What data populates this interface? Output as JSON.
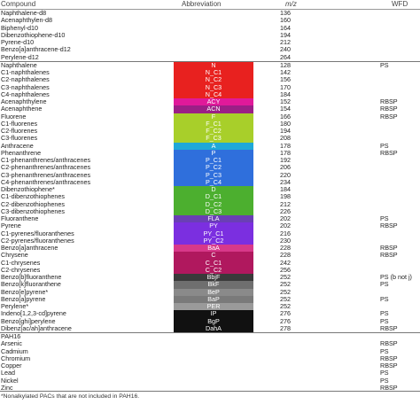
{
  "header": {
    "compound": "Compound",
    "abbreviation": "Abbreviation",
    "mz": "m/z",
    "wfd": "WFD"
  },
  "rows": [
    {
      "name": "Naphthalene-d8",
      "abbr": "",
      "mz": "136",
      "wfd": "",
      "color": ""
    },
    {
      "name": "Acenaphthylen-d8",
      "abbr": "",
      "mz": "160",
      "wfd": "",
      "color": ""
    },
    {
      "name": "Biphenyl-d10",
      "abbr": "",
      "mz": "164",
      "wfd": "",
      "color": ""
    },
    {
      "name": "Dibenzothiophene-d10",
      "abbr": "",
      "mz": "194",
      "wfd": "",
      "color": ""
    },
    {
      "name": "Pyrene-d10",
      "abbr": "",
      "mz": "212",
      "wfd": "",
      "color": ""
    },
    {
      "name": "Benzo[a]anthracene-d12",
      "abbr": "",
      "mz": "240",
      "wfd": "",
      "color": ""
    },
    {
      "name": "Perylene-d12",
      "abbr": "",
      "mz": "264",
      "wfd": "",
      "color": ""
    },
    {
      "name": "Naphthalene",
      "abbr": "N",
      "mz": "128",
      "wfd": "PS",
      "color": "#e8211f"
    },
    {
      "name": "C1-naphthalenes",
      "abbr": "N_C1",
      "mz": "142",
      "wfd": "",
      "color": "#e8211f"
    },
    {
      "name": "C2-naphthalenes",
      "abbr": "N_C2",
      "mz": "156",
      "wfd": "",
      "color": "#e8211f"
    },
    {
      "name": "C3-naphthalenes",
      "abbr": "N_C3",
      "mz": "170",
      "wfd": "",
      "color": "#e8211f"
    },
    {
      "name": "C4-naphthalenes",
      "abbr": "N_C4",
      "mz": "184",
      "wfd": "",
      "color": "#e8211f"
    },
    {
      "name": "Acenaphthylene",
      "abbr": "ACY",
      "mz": "152",
      "wfd": "RBSP",
      "color": "#e0199a"
    },
    {
      "name": "Acenaphthene",
      "abbr": "ACN",
      "mz": "154",
      "wfd": "RBSP",
      "color": "#9b1f86"
    },
    {
      "name": "Fluorene",
      "abbr": "F",
      "mz": "166",
      "wfd": "RBSP",
      "color": "#a8cf2a"
    },
    {
      "name": "C1-fluorenes",
      "abbr": "F_C1",
      "mz": "180",
      "wfd": "",
      "color": "#a8cf2a"
    },
    {
      "name": "C2-fluorenes",
      "abbr": "F_C2",
      "mz": "194",
      "wfd": "",
      "color": "#a8cf2a"
    },
    {
      "name": "C3-fluorenes",
      "abbr": "F_C3",
      "mz": "208",
      "wfd": "",
      "color": "#a8cf2a"
    },
    {
      "name": "Anthracene",
      "abbr": "A",
      "mz": "178",
      "wfd": "PS",
      "color": "#1fa8d8"
    },
    {
      "name": "Phenanthrene",
      "abbr": "P",
      "mz": "178",
      "wfd": "RBSP",
      "color": "#2f6fdc"
    },
    {
      "name": "C1-phenanthrenes/anthracenes",
      "abbr": "P_C1",
      "mz": "192",
      "wfd": "",
      "color": "#2f6fdc"
    },
    {
      "name": "C2-phenanthrenes/anthracenes",
      "abbr": "P_C2",
      "mz": "206",
      "wfd": "",
      "color": "#2f6fdc"
    },
    {
      "name": "C3-phenanthrenes/anthracenes",
      "abbr": "P_C3",
      "mz": "220",
      "wfd": "",
      "color": "#2f6fdc"
    },
    {
      "name": "C4-phenanthrenes/anthracenes",
      "abbr": "P_C4",
      "mz": "234",
      "wfd": "",
      "color": "#2f6fdc"
    },
    {
      "name": "Dibenzothiophene*",
      "abbr": "D",
      "mz": "184",
      "wfd": "",
      "color": "#4caf2f"
    },
    {
      "name": "C1-dibenzothiophenes",
      "abbr": "D_C1",
      "mz": "198",
      "wfd": "",
      "color": "#4caf2f"
    },
    {
      "name": "C2-dibenzothiophenes",
      "abbr": "D_C2",
      "mz": "212",
      "wfd": "",
      "color": "#4caf2f"
    },
    {
      "name": "C3-dibenzothiophenes",
      "abbr": "D_C3",
      "mz": "226",
      "wfd": "",
      "color": "#4caf2f"
    },
    {
      "name": "Fluoranthene",
      "abbr": "FLA",
      "mz": "202",
      "wfd": "PS",
      "color": "#6a3fb5"
    },
    {
      "name": "Pyrene",
      "abbr": "PY",
      "mz": "202",
      "wfd": "RBSP",
      "color": "#7b2fe0"
    },
    {
      "name": "C1-pyrenes/fluoranthenes",
      "abbr": "PY_C1",
      "mz": "216",
      "wfd": "",
      "color": "#7b2fe0"
    },
    {
      "name": "C2-pyrenes/fluoranthenes",
      "abbr": "PY_C2",
      "mz": "230",
      "wfd": "",
      "color": "#7b2fe0"
    },
    {
      "name": "Benzo[a]anthracene",
      "abbr": "BaA",
      "mz": "228",
      "wfd": "RBSP",
      "color": "#d8398a"
    },
    {
      "name": "Chrysene",
      "abbr": "C",
      "mz": "228",
      "wfd": "RBSP",
      "color": "#b0185e"
    },
    {
      "name": "C1-chrysenes",
      "abbr": "C_C1",
      "mz": "242",
      "wfd": "",
      "color": "#b0185e"
    },
    {
      "name": "C2-chrysenes",
      "abbr": "C_C2",
      "mz": "256",
      "wfd": "",
      "color": "#b0185e"
    },
    {
      "name": "Benzo[b]fluoranthene",
      "abbr": "BbjF",
      "mz": "252",
      "wfd": "PS (b not j)",
      "color": "#3a3a3a"
    },
    {
      "name": "Benzo[k]fluoranthene",
      "abbr": "BkF",
      "mz": "252",
      "wfd": "PS",
      "color": "#6f6f6f"
    },
    {
      "name": "Benzo[e]pyrene*",
      "abbr": "BeP",
      "mz": "252",
      "wfd": "",
      "color": "#8a8a8a"
    },
    {
      "name": "Benzo[a]pyrene",
      "abbr": "BaP",
      "mz": "252",
      "wfd": "PS",
      "color": "#7a7a7a"
    },
    {
      "name": "Perylene*",
      "abbr": "PER",
      "mz": "252",
      "wfd": "",
      "color": "#9a9a9a"
    },
    {
      "name": "Indeno[1,2,3-cd]pyrene",
      "abbr": "IP",
      "mz": "276",
      "wfd": "PS",
      "color": "#111111"
    },
    {
      "name": "Benzo[ghi]perylene",
      "abbr": "BgP",
      "mz": "276",
      "wfd": "PS",
      "color": "#111111"
    },
    {
      "name": "Dibenz[ac/ah]anthracene",
      "abbr": "DahA",
      "mz": "278",
      "wfd": "RBSP",
      "color": "#111111"
    },
    {
      "name": "PAH16",
      "abbr": "",
      "mz": "",
      "wfd": "",
      "color": ""
    },
    {
      "name": "Arsenic",
      "abbr": "",
      "mz": "",
      "wfd": "RBSP",
      "color": ""
    },
    {
      "name": "Cadmium",
      "abbr": "",
      "mz": "",
      "wfd": "PS",
      "color": ""
    },
    {
      "name": "Chromium",
      "abbr": "",
      "mz": "",
      "wfd": "RBSP",
      "color": ""
    },
    {
      "name": "Copper",
      "abbr": "",
      "mz": "",
      "wfd": "RBSP",
      "color": ""
    },
    {
      "name": "Lead",
      "abbr": "",
      "mz": "",
      "wfd": "PS",
      "color": ""
    },
    {
      "name": "Nickel",
      "abbr": "",
      "mz": "",
      "wfd": "PS",
      "color": ""
    },
    {
      "name": "Zinc",
      "abbr": "",
      "mz": "",
      "wfd": "RBSP",
      "color": ""
    }
  ],
  "footnote": "*Nonalkylated PACs that are not included in PAH16."
}
